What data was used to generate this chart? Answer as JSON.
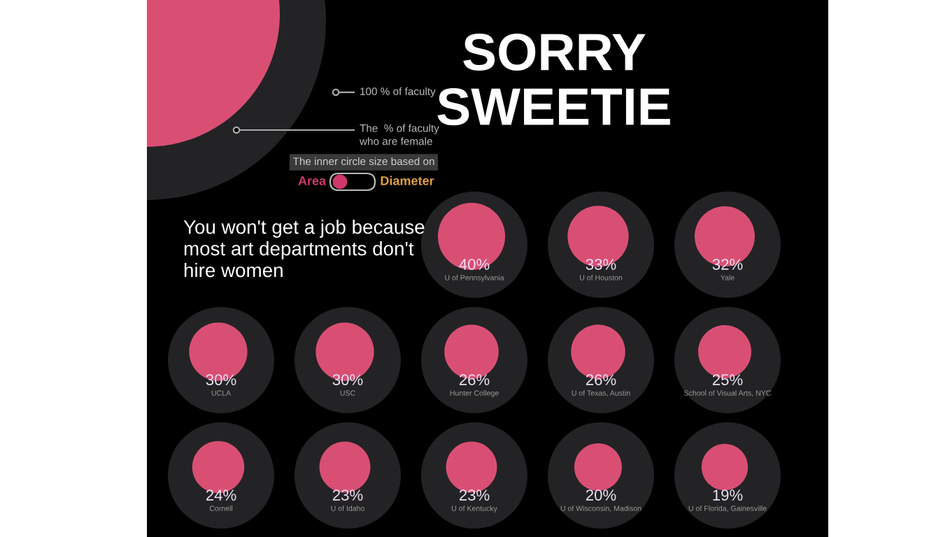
{
  "chart_data": {
    "type": "other",
    "title": "SORRY\nSWEETIE",
    "subtitle": "You won't get a job because\nmost art departments don't\nhire women",
    "categories": [
      "U of Pennsylvania",
      "U of Houston",
      "Yale",
      "UCLA",
      "USC",
      "Hunter College",
      "U of Texas, Austin",
      "School of Visual Arts, NYC",
      "Cornell",
      "U of Idaho",
      "U of Kentucky",
      "U of Wisconsin, Madison",
      "U of Florida, Gainesville"
    ],
    "values": [
      40,
      33,
      32,
      30,
      30,
      26,
      26,
      25,
      24,
      23,
      23,
      20,
      19
    ],
    "value_labels": [
      "40%",
      "33%",
      "32%",
      "30%",
      "30%",
      "26%",
      "26%",
      "25%",
      "24%",
      "23%",
      "23%",
      "20%",
      "19%"
    ],
    "annotations": [
      "100 % of faculty",
      "The  % of faculty\nwho are female",
      "The inner circle size based on",
      "Area",
      "Diameter"
    ]
  }
}
